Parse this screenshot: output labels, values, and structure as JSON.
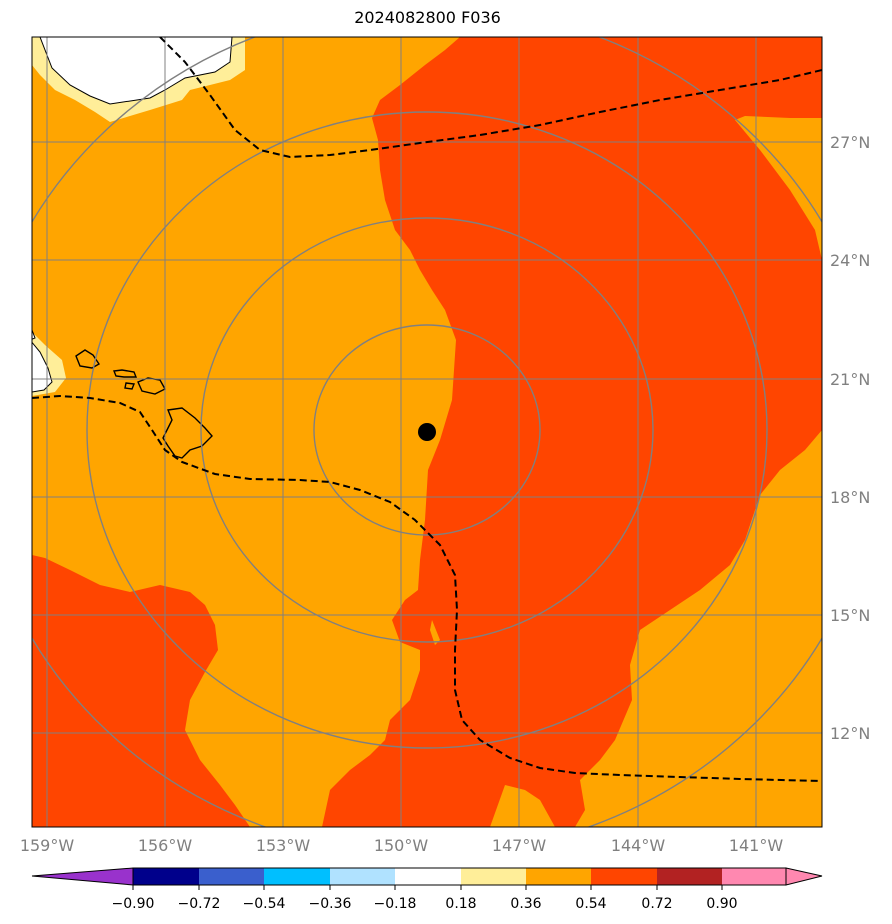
{
  "title": "2024082800 F036",
  "map": {
    "lon_range": [
      -159.3,
      -140.0
    ],
    "lat_range": [
      9.5,
      29.0
    ],
    "x_ticks": [
      {
        "value": -159,
        "label": "159°W"
      },
      {
        "value": -156,
        "label": "156°W"
      },
      {
        "value": -153,
        "label": "153°W"
      },
      {
        "value": -150,
        "label": "150°W"
      },
      {
        "value": -147,
        "label": "147°W"
      },
      {
        "value": -144,
        "label": "144°W"
      },
      {
        "value": -141,
        "label": "141°W"
      }
    ],
    "y_ticks": [
      {
        "value": 27,
        "label": "27°N"
      },
      {
        "value": 24,
        "label": "24°N"
      },
      {
        "value": 21,
        "label": "21°N"
      },
      {
        "value": 18,
        "label": "18°N"
      },
      {
        "value": 15,
        "label": "15°N"
      },
      {
        "value": 12,
        "label": "12°N"
      }
    ],
    "grid": true,
    "storm_center": {
      "lon": -149.3,
      "lat": 19.7
    },
    "range_rings": "concentric",
    "colors": {
      "background_field": "#ffa500",
      "high_field": "#ff4500",
      "low_field": "#ffffff",
      "margin_field": "#ffee99",
      "grid": "#808080",
      "contour": "#000000"
    }
  },
  "colorbar": {
    "ticks": [
      "−0.90",
      "−0.72",
      "−0.54",
      "−0.36",
      "−0.18",
      "0.18",
      "0.36",
      "0.54",
      "0.72",
      "0.90"
    ],
    "bins": [
      "#9932cc",
      "#00008b",
      "#3a5fcd",
      "#00bfff",
      "#b0e2ff",
      "#ffffff",
      "#ffee99",
      "#ffa500",
      "#ff4500",
      "#b22222",
      "#ff88b0"
    ]
  }
}
